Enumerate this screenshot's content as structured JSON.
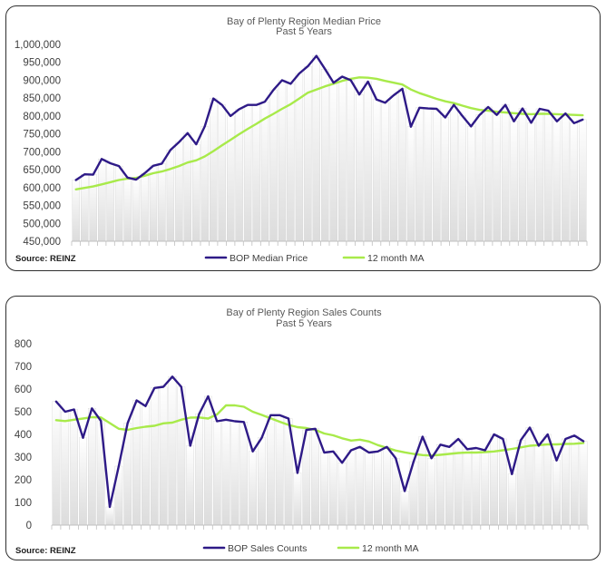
{
  "colors": {
    "series": "#2e1a87",
    "ma": "#a8ea4a",
    "bar": "#cfcfcf"
  },
  "chart_data": [
    {
      "type": "line",
      "title": "Bay of Plenty Region Median Price",
      "subtitle": "Past 5 Years",
      "ylim": [
        450000,
        1000000
      ],
      "yticks": [
        450000,
        500000,
        550000,
        600000,
        650000,
        700000,
        750000,
        800000,
        850000,
        900000,
        950000,
        1000000
      ],
      "ytick_labels": [
        "450,000",
        "500,000",
        "550,000",
        "600,000",
        "650,000",
        "700,000",
        "750,000",
        "800,000",
        "850,000",
        "900,000",
        "950,000",
        "1,000,000"
      ],
      "source": "Source: REINZ",
      "series": [
        {
          "name": "BOP Median Price",
          "values": [
            621000,
            637000,
            636000,
            680000,
            668000,
            660000,
            628000,
            622000,
            640000,
            661000,
            667000,
            705000,
            727000,
            752000,
            721000,
            771000,
            849000,
            831000,
            800000,
            819000,
            831000,
            831000,
            840000,
            873000,
            900000,
            890000,
            919000,
            939000,
            968000,
            931000,
            893000,
            910000,
            900000,
            860000,
            896000,
            846000,
            837000,
            858000,
            876000,
            770000,
            823000,
            821000,
            820000,
            796000,
            831000,
            800000,
            771000,
            803000,
            825000,
            803000,
            831000,
            785000,
            821000,
            781000,
            820000,
            815000,
            785000,
            807000,
            780000,
            790000
          ]
        },
        {
          "name": "12 month MA",
          "values": [
            595000,
            599000,
            603000,
            609000,
            615000,
            621000,
            625000,
            627000,
            633000,
            640000,
            645000,
            652000,
            660000,
            670000,
            676000,
            687000,
            702000,
            718000,
            733000,
            749000,
            764000,
            778000,
            793000,
            806000,
            820000,
            833000,
            849000,
            865000,
            874000,
            883000,
            890000,
            898000,
            904000,
            908000,
            907000,
            904000,
            898000,
            893000,
            888000,
            874000,
            864000,
            856000,
            848000,
            841000,
            836000,
            829000,
            822000,
            817000,
            815000,
            812000,
            810000,
            808000,
            806000,
            805000,
            806000,
            806000,
            805000,
            804000,
            803000,
            802000
          ]
        }
      ]
    },
    {
      "type": "line",
      "title": "Bay of Plenty Region Sales Counts",
      "subtitle": "Past 5 Years",
      "ylim": [
        0,
        800
      ],
      "yticks": [
        0,
        100,
        200,
        300,
        400,
        500,
        600,
        700,
        800
      ],
      "ytick_labels": [
        "0",
        "100",
        "200",
        "300",
        "400",
        "500",
        "600",
        "700",
        "800"
      ],
      "source": "Source: REINZ",
      "series": [
        {
          "name": "BOP Sales Counts",
          "values": [
            545,
            500,
            510,
            385,
            515,
            460,
            80,
            260,
            450,
            550,
            525,
            605,
            610,
            655,
            610,
            350,
            490,
            568,
            458,
            465,
            458,
            455,
            325,
            385,
            485,
            485,
            470,
            230,
            420,
            425,
            320,
            325,
            275,
            330,
            345,
            320,
            325,
            345,
            295,
            150,
            280,
            390,
            295,
            355,
            345,
            380,
            335,
            340,
            330,
            400,
            380,
            225,
            375,
            430,
            350,
            400,
            285,
            380,
            395,
            370
          ]
        },
        {
          "name": "12 month MA",
          "values": [
            463,
            459,
            465,
            470,
            476,
            475,
            450,
            425,
            420,
            428,
            434,
            438,
            449,
            452,
            465,
            474,
            475,
            470,
            488,
            528,
            528,
            522,
            500,
            486,
            471,
            456,
            442,
            432,
            428,
            420,
            404,
            396,
            383,
            373,
            377,
            369,
            353,
            341,
            329,
            321,
            314,
            309,
            307,
            310,
            314,
            318,
            320,
            320,
            322,
            325,
            330,
            336,
            343,
            350,
            353,
            356,
            356,
            358,
            359,
            362
          ]
        }
      ]
    }
  ]
}
